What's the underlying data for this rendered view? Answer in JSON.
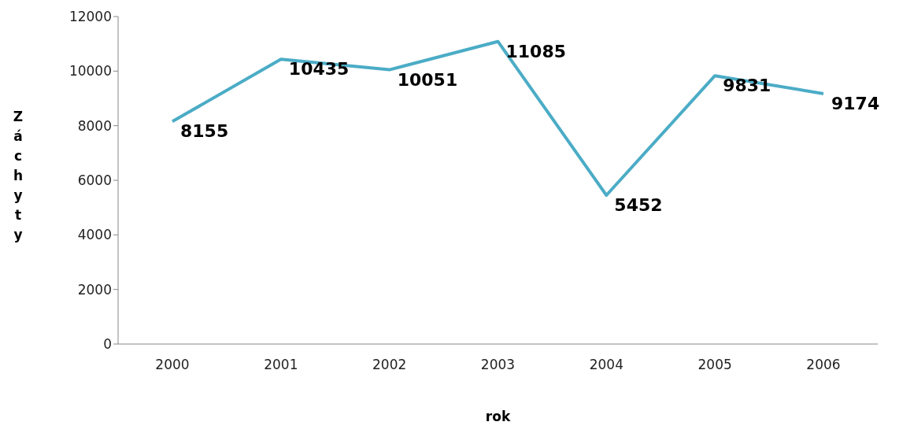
{
  "chart_data": {
    "type": "line",
    "xlabel": "rok",
    "ylabel": "Záchyty",
    "categories": [
      "2000",
      "2001",
      "2002",
      "2003",
      "2004",
      "2005",
      "2006"
    ],
    "series": [
      {
        "color": "#4bacc6",
        "values": [
          8155,
          10435,
          10051,
          11085,
          5452,
          9831,
          9174
        ]
      }
    ],
    "ylim": [
      0,
      12000
    ],
    "yticks": [
      0,
      2000,
      4000,
      6000,
      8000,
      10000,
      12000
    ],
    "data_labels": true,
    "grid": false,
    "marker": "none",
    "line_style": "solid"
  }
}
